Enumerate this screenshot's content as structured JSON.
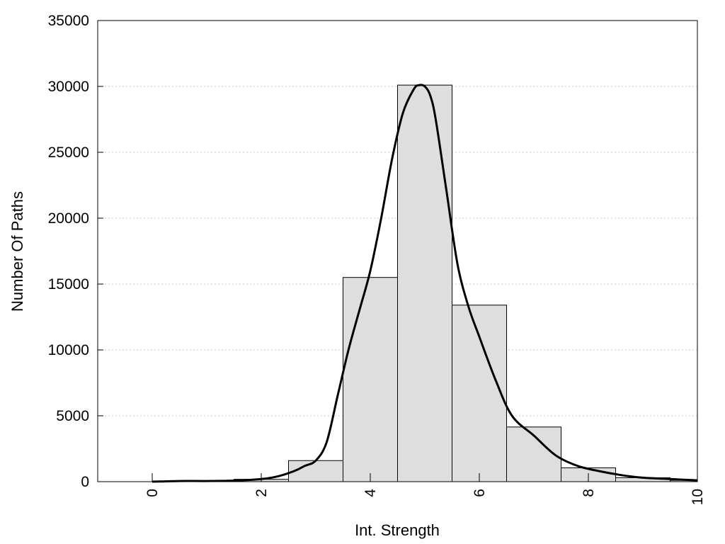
{
  "chart_data": {
    "type": "bar",
    "title": "",
    "xlabel": "Int. Strength",
    "ylabel": "Number Of Paths",
    "xlim": [
      -1,
      10
    ],
    "ylim": [
      0,
      35000
    ],
    "x_ticks": [
      0,
      2,
      4,
      6,
      8,
      10
    ],
    "x_tick_labels": [
      "0",
      "2",
      "4",
      "6",
      "8",
      "10"
    ],
    "y_ticks": [
      0,
      5000,
      10000,
      15000,
      20000,
      25000,
      30000,
      35000
    ],
    "y_tick_labels": [
      "0",
      "5000",
      "10000",
      "15000",
      "20000",
      "25000",
      "30000",
      "35000"
    ],
    "grid": "horizontal-dotted",
    "legend": "none",
    "bar_fill": "#dedede",
    "bars": [
      {
        "x": 0,
        "value": 0
      },
      {
        "x": 1,
        "value": 30
      },
      {
        "x": 2,
        "value": 180
      },
      {
        "x": 3,
        "value": 1600
      },
      {
        "x": 4,
        "value": 15500
      },
      {
        "x": 5,
        "value": 30100
      },
      {
        "x": 6,
        "value": 13400
      },
      {
        "x": 7,
        "value": 4150
      },
      {
        "x": 8,
        "value": 1050
      },
      {
        "x": 9,
        "value": 300
      },
      {
        "x": 10,
        "value": 100
      }
    ],
    "curve": {
      "x": [
        0,
        0.5,
        1,
        1.5,
        2,
        2.3,
        2.6,
        2.8,
        3,
        3.2,
        3.4,
        3.6,
        3.8,
        4,
        4.2,
        4.4,
        4.6,
        4.8,
        4.9,
        5,
        5.1,
        5.2,
        5.4,
        5.6,
        5.8,
        6,
        6.3,
        6.6,
        7,
        7.4,
        7.8,
        8.2,
        8.6,
        9,
        9.5,
        10
      ],
      "y": [
        0,
        50,
        50,
        80,
        200,
        400,
        800,
        1200,
        1600,
        3000,
        6500,
        10000,
        13000,
        16000,
        20000,
        24500,
        28000,
        29800,
        30100,
        30000,
        29300,
        27500,
        22000,
        16500,
        13300,
        11000,
        7700,
        5000,
        3500,
        2000,
        1200,
        800,
        500,
        300,
        200,
        100
      ]
    }
  }
}
